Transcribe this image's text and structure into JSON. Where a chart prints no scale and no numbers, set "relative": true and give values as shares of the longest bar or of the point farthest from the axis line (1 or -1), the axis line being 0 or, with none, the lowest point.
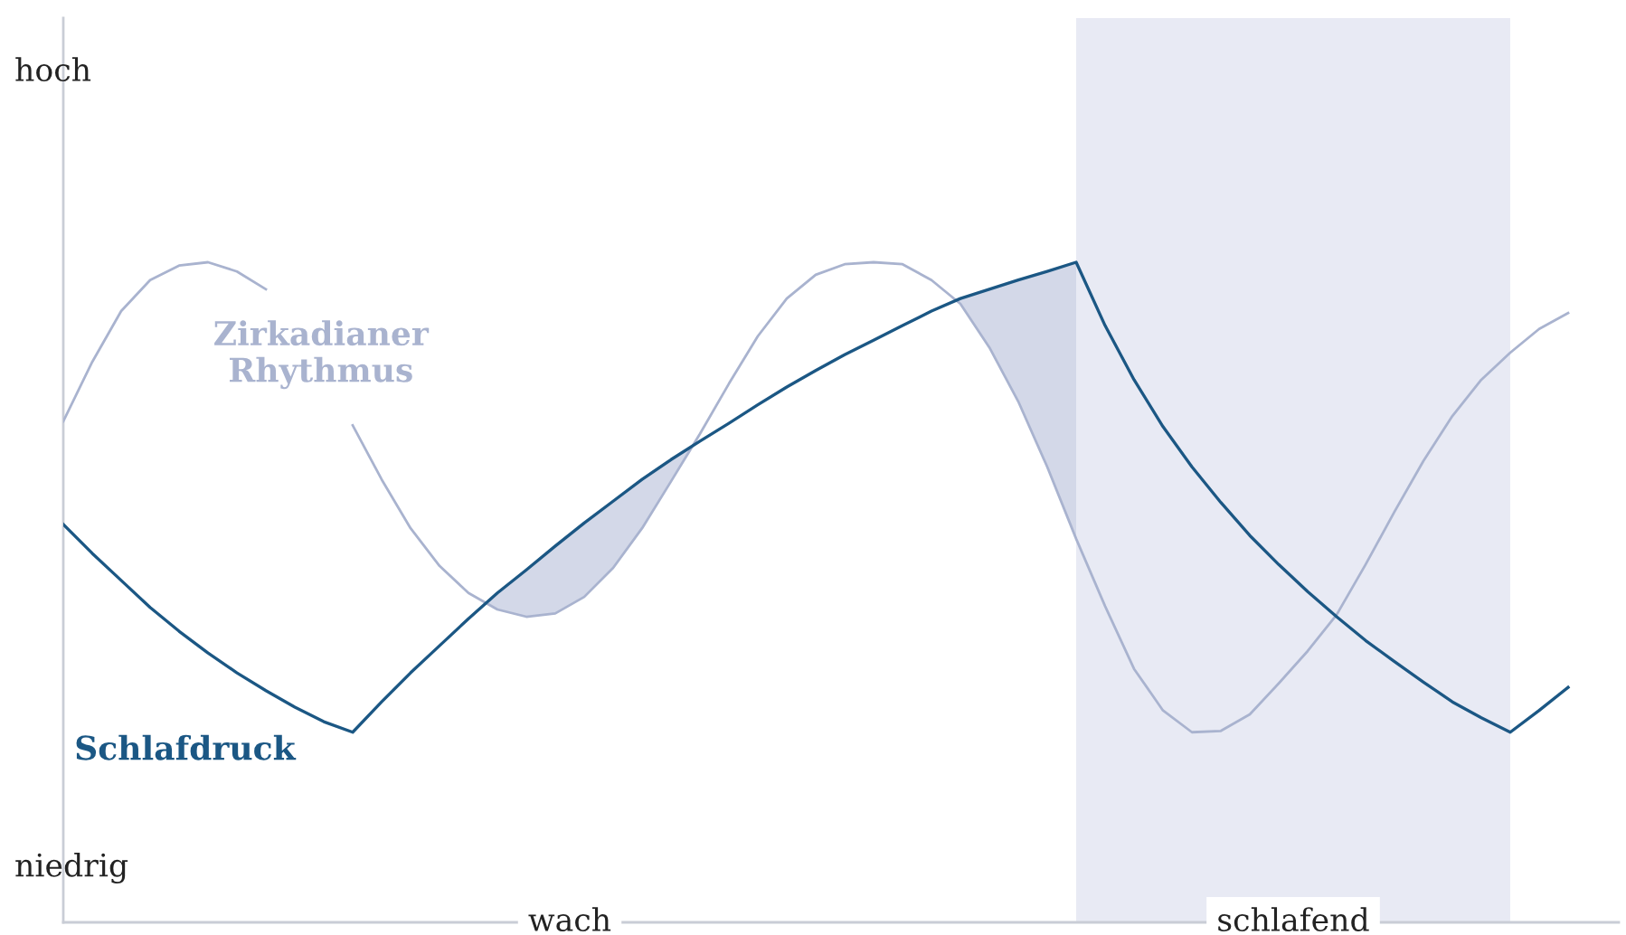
{
  "chart_data": {
    "type": "line",
    "relative": true,
    "legend": false,
    "marker": "none",
    "line_style": "solid",
    "categories": [
      null,
      null,
      null,
      null,
      null,
      null,
      null,
      null,
      null,
      null,
      null,
      null,
      null,
      null,
      null,
      null,
      null,
      null,
      null,
      null,
      null,
      null,
      null,
      null,
      null,
      null,
      null,
      null,
      null,
      null,
      null,
      null,
      null,
      null,
      null,
      null,
      null,
      null,
      null,
      null,
      null,
      null,
      null,
      null,
      null,
      null,
      null,
      null,
      null,
      null,
      null,
      null,
      null
    ],
    "series": [
      {
        "name": "Zirkadianer Rhythmus",
        "color": "#a9b3cf",
        "values": [
          0.759,
          0.849,
          0.926,
          0.973,
          0.995,
          1.0,
          0.986,
          0.959,
          null,
          null,
          0.753,
          0.671,
          0.597,
          0.54,
          0.499,
          0.474,
          0.463,
          0.468,
          0.493,
          0.537,
          0.597,
          0.668,
          0.74,
          0.816,
          0.888,
          0.945,
          0.981,
          0.997,
          1.0,
          0.997,
          0.973,
          0.937,
          0.871,
          0.789,
          0.69,
          0.581,
          0.479,
          0.384,
          0.321,
          0.288,
          0.29,
          0.315,
          0.362,
          0.411,
          0.466,
          0.542,
          0.622,
          0.699,
          0.767,
          0.822,
          0.863,
          0.899,
          0.923
        ]
      },
      {
        "name": "Schlafdruck",
        "color": "#1b5784",
        "values": [
          0.603,
          0.559,
          0.518,
          0.477,
          0.441,
          0.408,
          0.378,
          0.351,
          0.326,
          0.304,
          0.288,
          0.334,
          0.378,
          0.419,
          0.46,
          0.499,
          0.534,
          0.57,
          0.605,
          0.638,
          0.671,
          0.701,
          0.729,
          0.756,
          0.784,
          0.811,
          0.836,
          0.86,
          0.882,
          0.904,
          0.926,
          0.945,
          0.959,
          0.973,
          0.986,
          1.0,
          0.904,
          0.822,
          0.751,
          0.69,
          0.636,
          0.586,
          0.542,
          0.501,
          0.463,
          0.427,
          0.395,
          0.364,
          0.334,
          0.31,
          0.288,
          0.321,
          0.356
        ]
      }
    ],
    "annotations": [
      "hoch",
      "niedrig",
      "wach",
      "schlafend"
    ]
  }
}
